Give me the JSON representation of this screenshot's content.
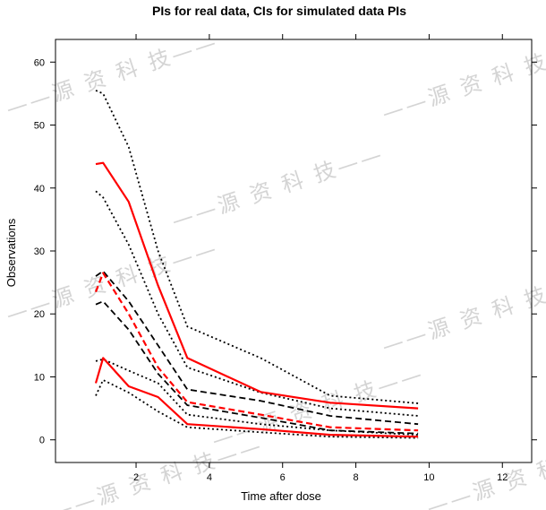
{
  "chart_data": {
    "type": "line",
    "title": "PIs for real data, CIs for simulated data PIs",
    "xlabel": "Time after dose",
    "ylabel": "Observations",
    "xlim": [
      -0.2,
      12.8
    ],
    "ylim": [
      -3.6,
      63.6
    ],
    "xticks": [
      2,
      4,
      6,
      8,
      10,
      12
    ],
    "yticks": [
      0,
      10,
      20,
      30,
      40,
      50,
      60
    ],
    "x": [
      0.9,
      1.1,
      1.8,
      2.6,
      3.4,
      5.4,
      7.3,
      9.7
    ],
    "grid": false,
    "series": [
      {
        "role": "real-upper-pi",
        "color": "#ff0000",
        "style": "solid",
        "values": [
          43.8,
          44.0,
          37.8,
          24.5,
          13.0,
          7.6,
          5.9,
          5.0
        ]
      },
      {
        "role": "real-median",
        "color": "#ff0000",
        "style": "dashed",
        "values": [
          23.5,
          26.5,
          20.0,
          11.5,
          6.0,
          4.0,
          2.0,
          1.5
        ]
      },
      {
        "role": "real-lower-pi",
        "color": "#ff0000",
        "style": "solid",
        "values": [
          9.0,
          13.0,
          8.5,
          6.8,
          2.5,
          1.7,
          0.8,
          0.5
        ]
      },
      {
        "role": "sim-upper-ci-high",
        "color": "#000000",
        "style": "dotted",
        "values": [
          55.5,
          55.0,
          46.5,
          30.0,
          18.0,
          13.0,
          7.0,
          5.8
        ]
      },
      {
        "role": "sim-upper-ci-low",
        "color": "#000000",
        "style": "dotted",
        "values": [
          39.5,
          38.5,
          31.0,
          20.0,
          11.5,
          7.5,
          5.0,
          3.8
        ]
      },
      {
        "role": "sim-median-ci-high",
        "color": "#000000",
        "style": "dashed",
        "values": [
          26.0,
          26.8,
          22.0,
          15.0,
          8.0,
          6.2,
          3.8,
          2.5
        ]
      },
      {
        "role": "sim-median-ci-low",
        "color": "#000000",
        "style": "dashed",
        "values": [
          21.5,
          22.0,
          17.5,
          10.5,
          5.5,
          3.5,
          1.5,
          1.0
        ]
      },
      {
        "role": "sim-lower-ci-high",
        "color": "#000000",
        "style": "dotted",
        "values": [
          12.5,
          12.8,
          11.0,
          9.0,
          4.0,
          2.5,
          1.5,
          0.8
        ]
      },
      {
        "role": "sim-lower-ci-low",
        "color": "#000000",
        "style": "dotted",
        "values": [
          7.0,
          9.5,
          7.5,
          4.5,
          2.0,
          1.2,
          0.5,
          0.3
        ]
      }
    ],
    "watermark": "——源 资 科 技——"
  }
}
